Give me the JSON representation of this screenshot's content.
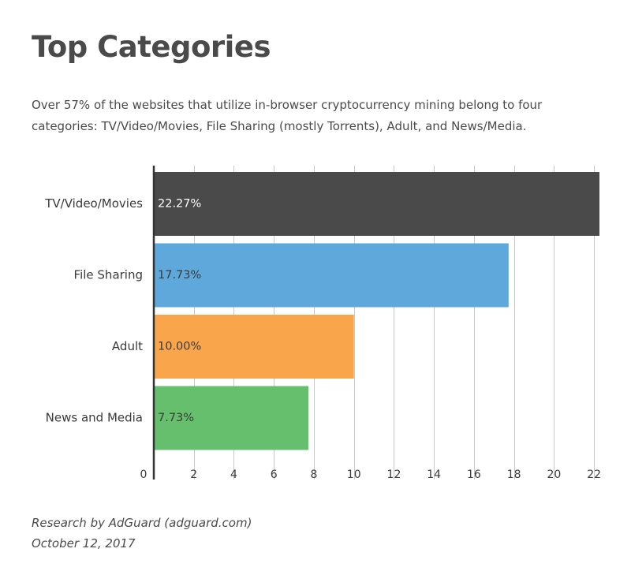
{
  "title": "Top Categories",
  "subtitle": "Over 57% of the websites that utilize in-browser cryptocurrency mining belong to four categories: TV/Video/Movies, File Sharing (mostly Torrents), Adult, and News/Media.",
  "footer": {
    "source": "Research by AdGuard (adguard.com)",
    "date": "October 12, 2017"
  },
  "chart_data": {
    "type": "bar",
    "orientation": "horizontal",
    "categories": [
      "TV/Video/Movies",
      "File Sharing",
      "Adult",
      "News and Media"
    ],
    "values": [
      22.27,
      17.73,
      10.0,
      7.73
    ],
    "data_labels": [
      "22.27%",
      "17.73%",
      "10.00%",
      "7.73%"
    ],
    "colors": [
      "#4a4a4a",
      "#5fa8db",
      "#f8a54b",
      "#66bf6d"
    ],
    "label_colors": [
      "#ffffff",
      "#3a3a3a",
      "#3a3a3a",
      "#3a3a3a"
    ],
    "xticks": [
      0,
      2,
      4,
      6,
      8,
      10,
      12,
      14,
      16,
      18,
      20,
      22
    ],
    "xlim": [
      0,
      22.27
    ],
    "grid": true,
    "legend": "none",
    "xlabel": "",
    "ylabel": ""
  }
}
